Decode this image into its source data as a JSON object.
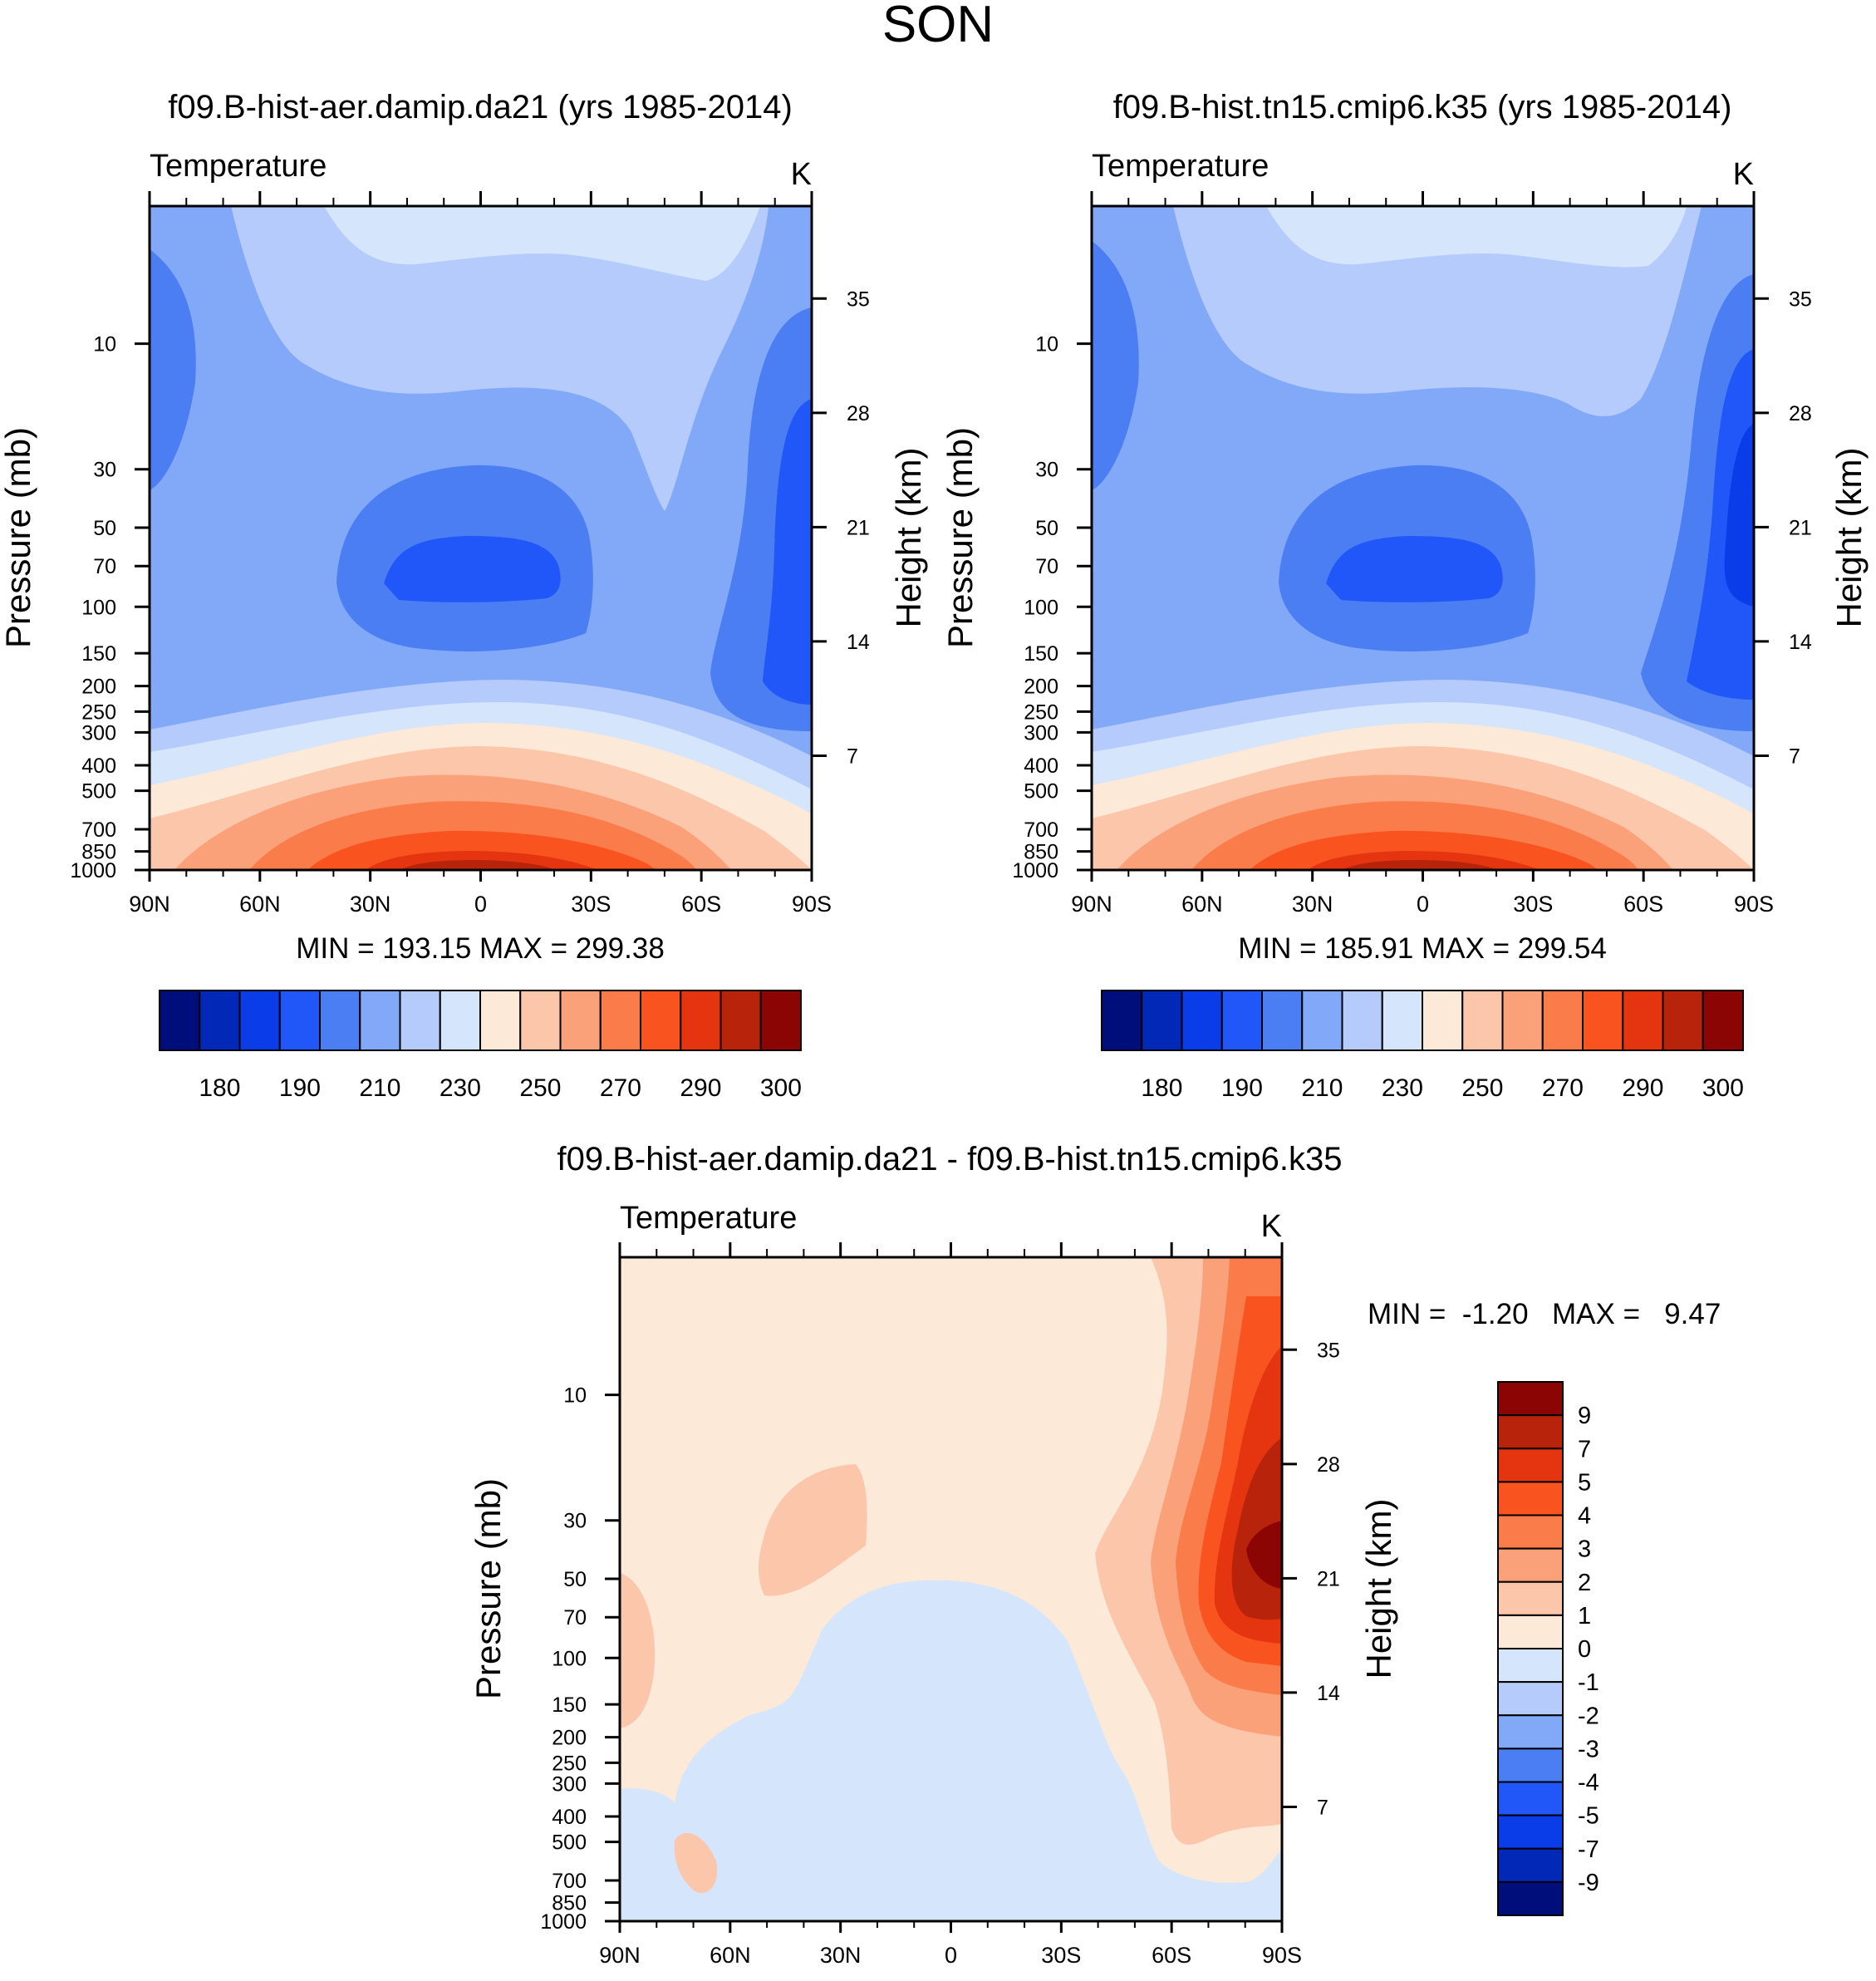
{
  "page_title": "SON",
  "colors": {
    "temp_levels": [
      "#000e7c",
      "#0228b8",
      "#0a3de8",
      "#2156f8",
      "#4a7ef2",
      "#82a9f7",
      "#b4cbfb",
      "#d5e5fb",
      "#fde9d8",
      "#fcc6aa",
      "#fba17a",
      "#fa7c4a",
      "#f9541f",
      "#e53510",
      "#b8230c",
      "#8b0505"
    ],
    "diff_levels": [
      "#8b0505",
      "#b8230c",
      "#e53510",
      "#f9541f",
      "#fa7c4a",
      "#fba17a",
      "#fcc6aa",
      "#fde9d8",
      "#d5e5fb",
      "#b4cbfb",
      "#82a9f7",
      "#4a7ef2",
      "#2156f8",
      "#0a3de8",
      "#0228b8",
      "#000e7c"
    ]
  },
  "chart_data": [
    {
      "type": "heatmap",
      "title": "f09.B-hist-aer.damip.da21 (yrs 1985-2014)",
      "variable": "Temperature",
      "units": "K",
      "ylabel": "Pressure (mb)",
      "ylabel_right": "Height (km)",
      "x_ticks": [
        "90N",
        "60N",
        "30N",
        "0",
        "30S",
        "60S",
        "90S"
      ],
      "y_ticks": [
        10,
        30,
        50,
        70,
        100,
        150,
        200,
        250,
        300,
        400,
        500,
        700,
        850,
        1000
      ],
      "y_right_ticks": [
        35,
        28,
        21,
        14,
        7
      ],
      "ylim": [
        3,
        1000
      ],
      "stats": "MIN = 193.15  MAX = 299.38",
      "colorbar_labels": [
        "180",
        "190",
        "210",
        "230",
        "250",
        "270",
        "290",
        "300"
      ]
    },
    {
      "type": "heatmap",
      "title": "f09.B-hist.tn15.cmip6.k35 (yrs 1985-2014)",
      "variable": "Temperature",
      "units": "K",
      "ylabel": "Pressure (mb)",
      "ylabel_right": "Height (km)",
      "x_ticks": [
        "90N",
        "60N",
        "30N",
        "0",
        "30S",
        "60S",
        "90S"
      ],
      "y_ticks": [
        10,
        30,
        50,
        70,
        100,
        150,
        200,
        250,
        300,
        400,
        500,
        700,
        850,
        1000
      ],
      "y_right_ticks": [
        35,
        28,
        21,
        14,
        7
      ],
      "ylim": [
        3,
        1000
      ],
      "stats": "MIN = 185.91  MAX = 299.54",
      "colorbar_labels": [
        "180",
        "190",
        "210",
        "230",
        "250",
        "270",
        "290",
        "300"
      ]
    },
    {
      "type": "heatmap",
      "title": "f09.B-hist-aer.damip.da21 - f09.B-hist.tn15.cmip6.k35",
      "variable": "Temperature",
      "units": "K",
      "ylabel": "Pressure (mb)",
      "ylabel_right": "Height (km)",
      "x_ticks": [
        "90N",
        "60N",
        "30N",
        "0",
        "30S",
        "60S",
        "90S"
      ],
      "y_ticks": [
        10,
        30,
        50,
        70,
        100,
        150,
        200,
        250,
        300,
        400,
        500,
        700,
        850,
        1000
      ],
      "y_right_ticks": [
        35,
        28,
        21,
        14,
        7
      ],
      "ylim": [
        3,
        1000
      ],
      "stats_min": "MIN =  -1.20",
      "stats_max": "MAX =   9.47",
      "colorbar_labels": [
        "9",
        "7",
        "5",
        "4",
        "3",
        "2",
        "1",
        "0",
        "-1",
        "-2",
        "-3",
        "-4",
        "-5",
        "-7",
        "-9"
      ]
    }
  ]
}
